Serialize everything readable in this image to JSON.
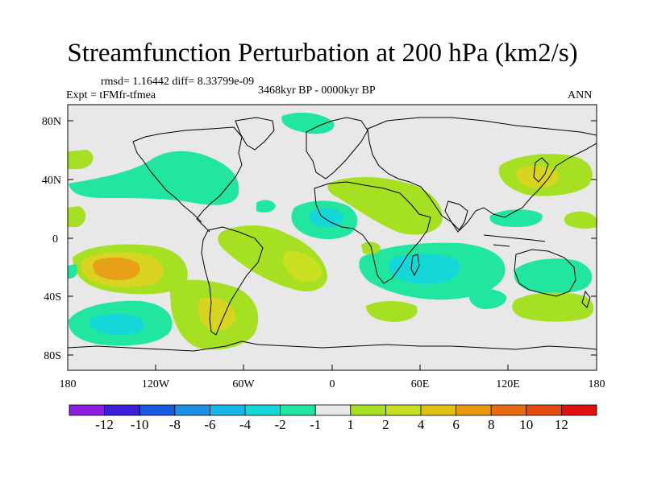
{
  "title": "Streamfunction Perturbation at 200 hPa (km2/s)",
  "stats": "rmsd= 1.16442 diff= 8.33799e-09",
  "experiment": "Expt = tFMfr-tfmea",
  "period": "3468kyr BP - 0000kyr BP",
  "season": "ANN",
  "axes": {
    "lat_labels": [
      "80N",
      "40N",
      "0",
      "40S",
      "80S"
    ],
    "lon_labels": [
      "180",
      "120W",
      "60W",
      "0",
      "60E",
      "120E",
      "180"
    ]
  },
  "colorbar": {
    "labels": [
      "-12",
      "-10",
      "-8",
      "-6",
      "-4",
      "-2",
      "-1",
      "1",
      "2",
      "4",
      "6",
      "8",
      "10",
      "12"
    ],
    "colors": [
      "#8a1fe0",
      "#3a20d8",
      "#1a5ae0",
      "#1f8fe6",
      "#18b8e6",
      "#14d8d8",
      "#20e6a0",
      "#e8e8e8",
      "#a6e022",
      "#c8e020",
      "#e0c010",
      "#e89a0c",
      "#e86a10",
      "#e64a10",
      "#e01010"
    ]
  },
  "colors": {
    "ocean_bg": "#e8e8e8",
    "green_pos": "#a6e022",
    "yellow_pos": "#d8d420",
    "orange_pos": "#e8a018",
    "teal_neg": "#20e6a0",
    "cyan_neg": "#14d8d8"
  }
}
